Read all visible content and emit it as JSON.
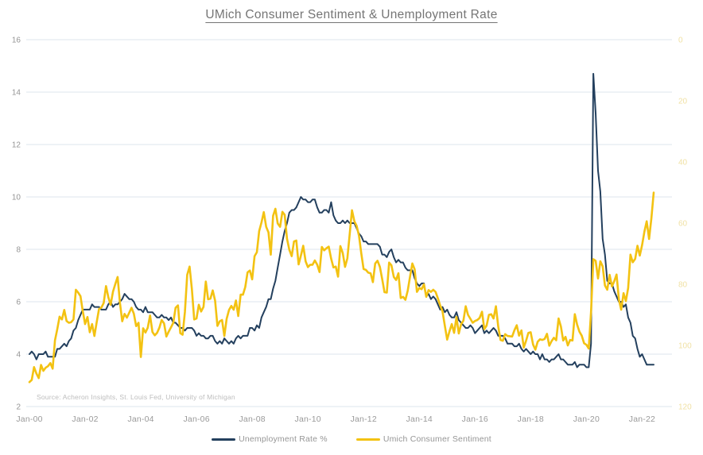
{
  "title": "UMich Consumer Sentiment & Unemployment Rate",
  "source_note": "Source: Acheron Insights, St. Louis Fed, University of Michigan",
  "colors": {
    "background": "#ffffff",
    "unemployment_line": "#24405e",
    "sentiment_line": "#f3c212",
    "gridline": "#dde5ec",
    "title_text": "#757575",
    "left_axis_text": "#959595",
    "x_axis_text": "#999999",
    "right_axis_text": "#f0e1a4",
    "source_text": "#bdbdbd",
    "legend_text": "#969696"
  },
  "chart_data": {
    "type": "line",
    "title": "UMich Consumer Sentiment & Unemployment Rate",
    "frequency": "monthly",
    "x_start": "Jan-2000",
    "x_end": "Jun-2022",
    "x_tick_labels": [
      "Jan-00",
      "Jan-02",
      "Jan-04",
      "Jan-06",
      "Jan-08",
      "Jan-10",
      "Jan-12",
      "Jan-14",
      "Jan-16",
      "Jan-18",
      "Jan-20",
      "Jan-22"
    ],
    "x_tick_interval_months": 24,
    "grid": "horizontal-only",
    "legend_position": "bottom-center",
    "left_axis": {
      "label": "",
      "range": [
        2,
        16
      ],
      "ticks": [
        2,
        4,
        6,
        8,
        10,
        12,
        14,
        16
      ],
      "inverted": false
    },
    "right_axis": {
      "label": "",
      "range": [
        0,
        120
      ],
      "ticks": [
        0,
        20,
        40,
        60,
        80,
        100,
        120
      ],
      "inverted": true
    },
    "series": [
      {
        "name": "Unemployment Rate %",
        "axis": "left",
        "color": "#24405e",
        "line_width": 2,
        "values": [
          4.0,
          4.1,
          4.0,
          3.8,
          4.0,
          4.0,
          4.0,
          4.1,
          3.9,
          3.9,
          3.9,
          3.9,
          4.2,
          4.2,
          4.3,
          4.4,
          4.3,
          4.5,
          4.6,
          4.9,
          5.0,
          5.3,
          5.5,
          5.7,
          5.7,
          5.7,
          5.7,
          5.9,
          5.8,
          5.8,
          5.8,
          5.7,
          5.7,
          5.7,
          5.9,
          6.0,
          5.8,
          5.9,
          5.9,
          6.0,
          6.1,
          6.3,
          6.2,
          6.1,
          6.1,
          6.0,
          5.8,
          5.7,
          5.7,
          5.6,
          5.8,
          5.6,
          5.6,
          5.6,
          5.5,
          5.4,
          5.4,
          5.5,
          5.4,
          5.4,
          5.3,
          5.4,
          5.2,
          5.2,
          5.1,
          5.0,
          5.0,
          4.9,
          5.0,
          5.0,
          5.0,
          4.9,
          4.7,
          4.8,
          4.7,
          4.7,
          4.6,
          4.6,
          4.7,
          4.7,
          4.5,
          4.4,
          4.5,
          4.4,
          4.6,
          4.5,
          4.4,
          4.5,
          4.4,
          4.6,
          4.7,
          4.6,
          4.7,
          4.7,
          4.7,
          5.0,
          5.0,
          4.9,
          5.1,
          5.0,
          5.4,
          5.6,
          5.8,
          6.1,
          6.1,
          6.5,
          6.8,
          7.3,
          7.8,
          8.3,
          8.7,
          9.0,
          9.4,
          9.5,
          9.5,
          9.6,
          9.8,
          10.0,
          9.9,
          9.9,
          9.8,
          9.8,
          9.9,
          9.9,
          9.6,
          9.4,
          9.4,
          9.5,
          9.5,
          9.4,
          9.8,
          9.3,
          9.1,
          9.0,
          9.0,
          9.1,
          9.0,
          9.1,
          9.0,
          9.0,
          9.0,
          8.8,
          8.6,
          8.5,
          8.3,
          8.3,
          8.2,
          8.2,
          8.2,
          8.2,
          8.2,
          8.1,
          7.8,
          7.8,
          7.7,
          7.9,
          8.0,
          7.7,
          7.5,
          7.6,
          7.5,
          7.5,
          7.3,
          7.2,
          7.2,
          7.2,
          6.9,
          6.7,
          6.6,
          6.7,
          6.7,
          6.2,
          6.3,
          6.1,
          6.2,
          6.1,
          5.9,
          5.7,
          5.8,
          5.6,
          5.7,
          5.5,
          5.4,
          5.4,
          5.6,
          5.3,
          5.2,
          5.1,
          5.0,
          5.0,
          5.1,
          5.0,
          4.8,
          4.9,
          5.0,
          5.1,
          4.8,
          4.9,
          4.8,
          4.9,
          5.0,
          4.9,
          4.7,
          4.7,
          4.7,
          4.6,
          4.4,
          4.4,
          4.4,
          4.3,
          4.3,
          4.4,
          4.2,
          4.1,
          4.2,
          4.1,
          4.0,
          4.1,
          4.0,
          4.0,
          3.8,
          4.0,
          3.8,
          3.8,
          3.7,
          3.8,
          3.8,
          3.9,
          4.0,
          3.8,
          3.8,
          3.7,
          3.6,
          3.6,
          3.6,
          3.7,
          3.5,
          3.6,
          3.6,
          3.6,
          3.5,
          3.5,
          4.4,
          14.7,
          13.2,
          11.0,
          10.2,
          8.4,
          7.8,
          6.8,
          6.7,
          6.7,
          6.4,
          6.2,
          6.0,
          6.0,
          5.8,
          5.9,
          5.4,
          5.2,
          4.7,
          4.6,
          4.2,
          3.9,
          4.0,
          3.8,
          3.6,
          3.6,
          3.6,
          3.6
        ]
      },
      {
        "name": "Umich Consumer Sentiment",
        "axis": "right",
        "color": "#f3c212",
        "line_width": 2.6,
        "values": [
          112.0,
          111.3,
          107.1,
          109.2,
          110.7,
          106.4,
          108.3,
          107.3,
          106.8,
          105.8,
          107.6,
          98.4,
          94.7,
          90.6,
          91.5,
          88.4,
          92.0,
          92.6,
          92.4,
          91.5,
          81.8,
          82.7,
          83.9,
          88.8,
          93.0,
          90.7,
          95.7,
          93.0,
          96.9,
          92.4,
          88.1,
          87.6,
          86.1,
          80.6,
          84.2,
          86.7,
          82.4,
          79.9,
          77.6,
          86.0,
          92.1,
          89.7,
          90.9,
          89.3,
          87.7,
          89.6,
          93.7,
          92.6,
          103.8,
          94.4,
          95.8,
          94.2,
          90.2,
          95.6,
          96.7,
          95.9,
          94.2,
          91.7,
          92.8,
          97.1,
          95.5,
          94.1,
          92.6,
          87.7,
          86.9,
          96.0,
          96.5,
          89.1,
          76.9,
          74.2,
          81.6,
          91.5,
          91.2,
          86.7,
          88.9,
          87.4,
          79.1,
          84.9,
          84.7,
          82.0,
          85.4,
          93.6,
          92.1,
          91.7,
          96.9,
          91.3,
          88.4,
          87.1,
          88.3,
          85.3,
          90.4,
          83.4,
          83.4,
          80.9,
          76.1,
          75.5,
          78.4,
          70.8,
          69.5,
          62.6,
          59.8,
          56.4,
          61.2,
          63.0,
          70.3,
          57.6,
          55.3,
          60.1,
          61.2,
          56.3,
          57.3,
          65.1,
          68.7,
          70.8,
          66.0,
          65.7,
          73.5,
          70.6,
          67.4,
          72.5,
          74.4,
          73.6,
          73.6,
          72.2,
          73.6,
          76.0,
          67.8,
          68.9,
          68.2,
          67.7,
          71.6,
          74.5,
          74.2,
          77.5,
          67.5,
          69.8,
          74.3,
          71.5,
          63.7,
          55.8,
          59.4,
          60.9,
          64.1,
          69.9,
          75.0,
          75.3,
          76.2,
          76.4,
          79.3,
          73.2,
          72.3,
          74.3,
          78.3,
          82.6,
          82.7,
          72.9,
          73.8,
          77.6,
          78.6,
          76.4,
          84.5,
          84.1,
          85.1,
          82.1,
          77.5,
          73.2,
          75.1,
          82.5,
          81.2,
          81.6,
          80.0,
          84.1,
          81.9,
          82.5,
          81.8,
          82.5,
          84.6,
          86.9,
          88.8,
          93.6,
          98.1,
          95.4,
          93.0,
          95.9,
          90.7,
          96.1,
          93.1,
          91.9,
          87.2,
          90.0,
          91.3,
          92.6,
          92.0,
          91.7,
          91.0,
          89.0,
          94.7,
          93.5,
          90.0,
          89.8,
          91.2,
          87.2,
          93.8,
          98.2,
          98.5,
          96.3,
          96.9,
          97.0,
          97.1,
          95.0,
          93.4,
          96.8,
          95.1,
          100.7,
          98.5,
          95.9,
          95.7,
          99.7,
          101.4,
          98.8,
          98.0,
          98.2,
          97.9,
          96.2,
          100.1,
          98.6,
          97.5,
          98.3,
          91.2,
          93.8,
          98.4,
          97.2,
          100.0,
          98.2,
          98.4,
          89.8,
          93.2,
          95.5,
          96.8,
          99.3,
          99.8,
          101.0,
          89.1,
          71.8,
          72.3,
          78.1,
          72.5,
          74.1,
          80.4,
          81.8,
          76.9,
          80.7,
          79.0,
          76.8,
          84.9,
          88.3,
          82.9,
          85.5,
          81.2,
          70.3,
          72.8,
          71.7,
          67.4,
          70.6,
          67.2,
          62.8,
          59.4,
          65.2,
          58.4,
          50.0
        ]
      }
    ]
  },
  "legend": {
    "items": [
      {
        "label": "Unemployment Rate %",
        "color": "#24405e"
      },
      {
        "label": "Umich Consumer Sentiment",
        "color": "#f3c212"
      }
    ]
  }
}
